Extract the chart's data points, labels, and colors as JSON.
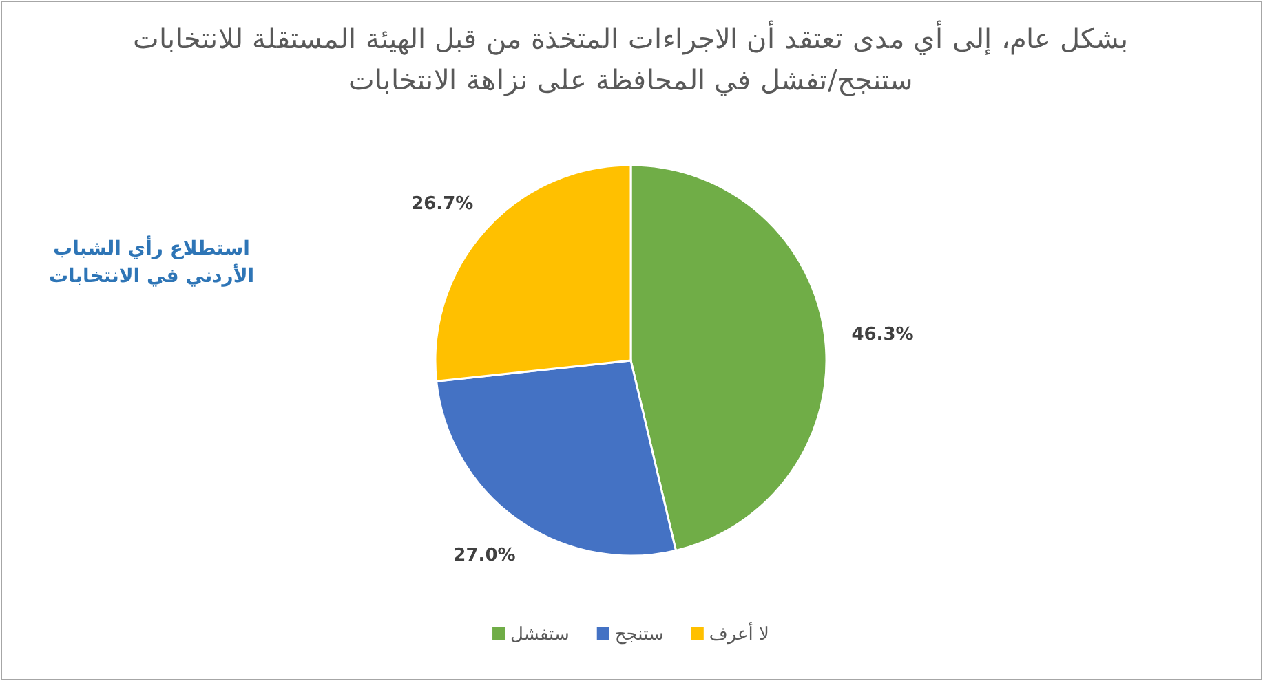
{
  "chart_data": {
    "type": "pie",
    "title": "بشكل عام، إلى أي مدى تعتقد أن الاجراءات المتخذة من قبل الهيئة المستقلة للانتخابات ستنجح/تفشل في المحافظة على نزاهة الانتخابات",
    "categories": [
      "ستفشل",
      "ستنجح",
      "لا أعرف"
    ],
    "values": [
      46.3,
      27.0,
      26.7
    ],
    "colors": [
      "#70ad47",
      "#4472c4",
      "#ffc000"
    ],
    "value_labels": [
      "46.3%",
      "27.0%",
      "26.7%"
    ],
    "legend": "bottom",
    "annotations": [
      "استطلاع رأي الشباب الأردني في الانتخابات"
    ]
  }
}
